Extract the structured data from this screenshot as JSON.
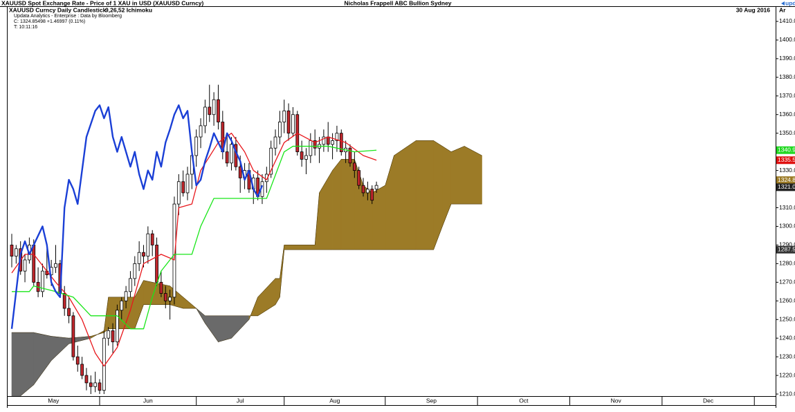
{
  "chart_data": {
    "type": "candlestick",
    "title": "XAUUSD Spot Exchange Rate - Price of 1 XAU in USD (XAUUSD Curncy)",
    "author": "Nicholas Frappell ABC Bullion Sydney",
    "brand": "upda",
    "subtitle": "XAUUSD Curncy Daily Candlestick",
    "study": "9,26,52 Ichimoku",
    "date": "30 Aug 2016",
    "axis_corner": "Ar",
    "source": "Updata Analytics - Enterprise : Data by Bloomberg",
    "close_info": "C: 1324.85498 +1.46997 (0.11%)",
    "time": "T: 10:11:16",
    "xlim": [
      -1.1,
      172.9
    ],
    "ylim": [
      1208.9,
      1411.1
    ],
    "xticks": [
      {
        "value": -1,
        "label": "May"
      },
      {
        "value": 20,
        "label": "Jun"
      },
      {
        "value": 42,
        "label": "Jul"
      },
      {
        "value": 62,
        "label": "Aug"
      },
      {
        "value": 85,
        "label": "Sep"
      },
      {
        "value": 106,
        "label": "Oct"
      },
      {
        "value": 127,
        "label": "Nov"
      },
      {
        "value": 148,
        "label": "Dec"
      }
    ],
    "yticks": [
      {
        "value": 1210,
        "label": "1210.0"
      },
      {
        "value": 1220,
        "label": "1220.0"
      },
      {
        "value": 1230,
        "label": "1230.0"
      },
      {
        "value": 1240,
        "label": "1240.0"
      },
      {
        "value": 1250,
        "label": "1250.0"
      },
      {
        "value": 1260,
        "label": "1260.0"
      },
      {
        "value": 1270,
        "label": "1270.0"
      },
      {
        "value": 1280,
        "label": "1280.0"
      },
      {
        "value": 1290,
        "label": "1290.0"
      },
      {
        "value": 1300,
        "label": "1300.0"
      },
      {
        "value": 1310,
        "label": "1310.0"
      },
      {
        "value": 1320,
        "label": "1320.0"
      },
      {
        "value": 1330,
        "label": "1330.0"
      },
      {
        "value": 1340,
        "label": "1340.0"
      },
      {
        "value": 1350,
        "label": "1350.0"
      },
      {
        "value": 1360,
        "label": "1360.0"
      },
      {
        "value": 1370,
        "label": "1370.0"
      },
      {
        "value": 1380,
        "label": "1380.0"
      },
      {
        "value": 1390,
        "label": "1390.0"
      },
      {
        "value": 1400,
        "label": "1400.0"
      },
      {
        "value": 1410,
        "label": "1410.0"
      }
    ],
    "candles": {
      "up_color": "#ffffff",
      "down_color": "#c1272d",
      "open": [
        1290,
        1284,
        1288,
        1276,
        1282,
        1290,
        1270,
        1265,
        1276,
        1274,
        1278,
        1280,
        1264,
        1256,
        1252,
        1230,
        1226,
        1220,
        1216,
        1214,
        1216,
        1212,
        1240,
        1244,
        1238,
        1255,
        1260,
        1265,
        1272,
        1280,
        1286,
        1284,
        1296,
        1290,
        1270,
        1264,
        1260,
        1262,
        1312,
        1324,
        1318,
        1328,
        1338,
        1348,
        1354,
        1364,
        1360,
        1368,
        1356,
        1340,
        1334,
        1344,
        1332,
        1326,
        1330,
        1320,
        1326,
        1316,
        1324,
        1328,
        1342,
        1348,
        1356,
        1362,
        1350,
        1360,
        1340,
        1336,
        1338,
        1346,
        1342,
        1344,
        1348,
        1344,
        1346,
        1350,
        1340,
        1342,
        1334,
        1330,
        1322,
        1318,
        1320,
        1320
      ],
      "high": [
        1296,
        1290,
        1292,
        1285,
        1294,
        1293,
        1278,
        1280,
        1288,
        1282,
        1290,
        1282,
        1268,
        1262,
        1254,
        1236,
        1230,
        1224,
        1220,
        1222,
        1218,
        1244,
        1246,
        1248,
        1258,
        1262,
        1268,
        1276,
        1284,
        1292,
        1290,
        1300,
        1298,
        1294,
        1276,
        1268,
        1266,
        1316,
        1328,
        1330,
        1332,
        1342,
        1352,
        1358,
        1368,
        1376,
        1372,
        1376,
        1362,
        1350,
        1348,
        1348,
        1338,
        1334,
        1334,
        1328,
        1330,
        1328,
        1332,
        1346,
        1352,
        1362,
        1368,
        1366,
        1364,
        1362,
        1346,
        1342,
        1350,
        1352,
        1348,
        1352,
        1356,
        1350,
        1354,
        1352,
        1346,
        1344,
        1340,
        1332,
        1326,
        1324,
        1322,
        1324
      ],
      "low": [
        1278,
        1280,
        1274,
        1270,
        1280,
        1268,
        1262,
        1262,
        1272,
        1268,
        1275,
        1262,
        1252,
        1248,
        1228,
        1222,
        1218,
        1212,
        1210,
        1211,
        1210,
        1210,
        1236,
        1232,
        1236,
        1250,
        1256,
        1262,
        1268,
        1276,
        1278,
        1280,
        1284,
        1268,
        1262,
        1256,
        1250,
        1258,
        1306,
        1316,
        1314,
        1320,
        1332,
        1342,
        1350,
        1356,
        1354,
        1352,
        1336,
        1332,
        1330,
        1330,
        1318,
        1320,
        1318,
        1312,
        1314,
        1312,
        1318,
        1326,
        1338,
        1344,
        1350,
        1346,
        1348,
        1338,
        1332,
        1328,
        1334,
        1338,
        1334,
        1340,
        1340,
        1336,
        1340,
        1338,
        1334,
        1332,
        1326,
        1320,
        1316,
        1314,
        1312,
        1318
      ],
      "close": [
        1284,
        1288,
        1276,
        1282,
        1290,
        1270,
        1265,
        1276,
        1274,
        1278,
        1280,
        1264,
        1256,
        1252,
        1230,
        1226,
        1220,
        1216,
        1214,
        1216,
        1212,
        1240,
        1244,
        1238,
        1255,
        1260,
        1265,
        1272,
        1280,
        1286,
        1284,
        1296,
        1290,
        1270,
        1264,
        1260,
        1262,
        1312,
        1324,
        1318,
        1328,
        1338,
        1348,
        1354,
        1364,
        1360,
        1368,
        1356,
        1340,
        1334,
        1344,
        1332,
        1326,
        1330,
        1320,
        1326,
        1316,
        1324,
        1328,
        1342,
        1348,
        1356,
        1362,
        1350,
        1360,
        1340,
        1336,
        1338,
        1346,
        1342,
        1344,
        1348,
        1344,
        1346,
        1350,
        1340,
        1342,
        1334,
        1330,
        1322,
        1318,
        1320,
        1314,
        1322
      ]
    },
    "cloud": {
      "bull_color": "#9c7b27",
      "bear_color": "#6a6a6a",
      "x": [
        0,
        5,
        9,
        13,
        18,
        21,
        22,
        28,
        30,
        36,
        39,
        42,
        44,
        47,
        50,
        54,
        55,
        56,
        60,
        61,
        62,
        69,
        70,
        73,
        75,
        78,
        80,
        82,
        85,
        87,
        92,
        96,
        98,
        100,
        103,
        107
      ],
      "span_a": [
        1205,
        1215,
        1228,
        1237,
        1240,
        1244,
        1262,
        1262,
        1271,
        1268,
        1262,
        1256,
        1248,
        1238,
        1240,
        1250,
        1256,
        1262,
        1272,
        1272,
        1290,
        1290,
        1318,
        1330,
        1336,
        1336,
        1322,
        1318,
        1322,
        1338,
        1346,
        1346,
        1343,
        1340,
        1343,
        1338
      ],
      "span_b": [
        1243,
        1243,
        1241,
        1240,
        1241,
        1243,
        1245,
        1245,
        1258,
        1258,
        1256,
        1256,
        1252,
        1252,
        1252,
        1252,
        1252,
        1252,
        1258,
        1262,
        1287.5,
        1287.5,
        1287.5,
        1287.5,
        1287.5,
        1287.5,
        1287.5,
        1287.5,
        1287.5,
        1287.5,
        1287.5,
        1287.5,
        1300,
        1312,
        1312,
        1312
      ]
    },
    "lines": [
      {
        "color": "#e8161b",
        "x": [
          0,
          3,
          5,
          10,
          13,
          16,
          19,
          21,
          24,
          27,
          30,
          34,
          37,
          38,
          41,
          43,
          47,
          50,
          53,
          55,
          58,
          62,
          65,
          69,
          72,
          76,
          80,
          83
        ],
        "values": [
          1275,
          1285,
          1285,
          1270,
          1262,
          1250,
          1232,
          1225,
          1235,
          1255,
          1280,
          1285,
          1282,
          1310,
          1312,
          1330,
          1345,
          1350,
          1340,
          1330,
          1325,
          1345,
          1350,
          1345,
          1348,
          1345,
          1338,
          1335.5
        ]
      },
      {
        "color": "#19e619",
        "x": [
          0,
          4,
          5,
          10,
          14,
          18,
          24,
          27,
          30,
          32,
          34,
          37,
          41,
          43,
          46,
          58,
          62,
          64,
          72,
          78,
          83
        ],
        "values": [
          1265,
          1265,
          1268,
          1265,
          1262,
          1252,
          1252,
          1245,
          1245,
          1262,
          1276,
          1285,
          1285,
          1300,
          1315,
          1315,
          1340,
          1343,
          1343,
          1340,
          1340.9
        ]
      },
      {
        "color": "#1a3fd6",
        "x": [
          0,
          1,
          2,
          3,
          4,
          5,
          6,
          7,
          8,
          9,
          10,
          11,
          12,
          13,
          14,
          15,
          16,
          17,
          18,
          19,
          20,
          21,
          22,
          23,
          24,
          25,
          26,
          27,
          28,
          29,
          30,
          31,
          32,
          33,
          34,
          35,
          36,
          37,
          38,
          39,
          40,
          41,
          42,
          43,
          44,
          45,
          46,
          47,
          48,
          49,
          50,
          51,
          52,
          53,
          54,
          55,
          56,
          57
        ],
        "values": [
          1245,
          1265,
          1285,
          1292,
          1285,
          1290,
          1295,
          1300,
          1290,
          1270,
          1265,
          1262,
          1310,
          1325,
          1320,
          1312,
          1330,
          1348,
          1355,
          1362,
          1365,
          1358,
          1364,
          1348,
          1340,
          1348,
          1340,
          1332,
          1340,
          1328,
          1320,
          1330,
          1325,
          1340,
          1332,
          1345,
          1352,
          1360,
          1365,
          1358,
          1362,
          1340,
          1322,
          1325,
          1335,
          1342,
          1350,
          1345,
          1340,
          1350,
          1346,
          1340,
          1335,
          1325,
          1330,
          1320,
          1316,
          1322
        ]
      }
    ],
    "price_tags": [
      {
        "value": 1340.9,
        "color": "#22d822"
      },
      {
        "value": 1335.5,
        "color": "#e01010"
      },
      {
        "value": 1324.8,
        "color": "#9c7b27"
      },
      {
        "value": 1321,
        "label": "1321.0",
        "color": "#222222"
      },
      {
        "value": 1287.5,
        "color": "#333333"
      }
    ]
  }
}
